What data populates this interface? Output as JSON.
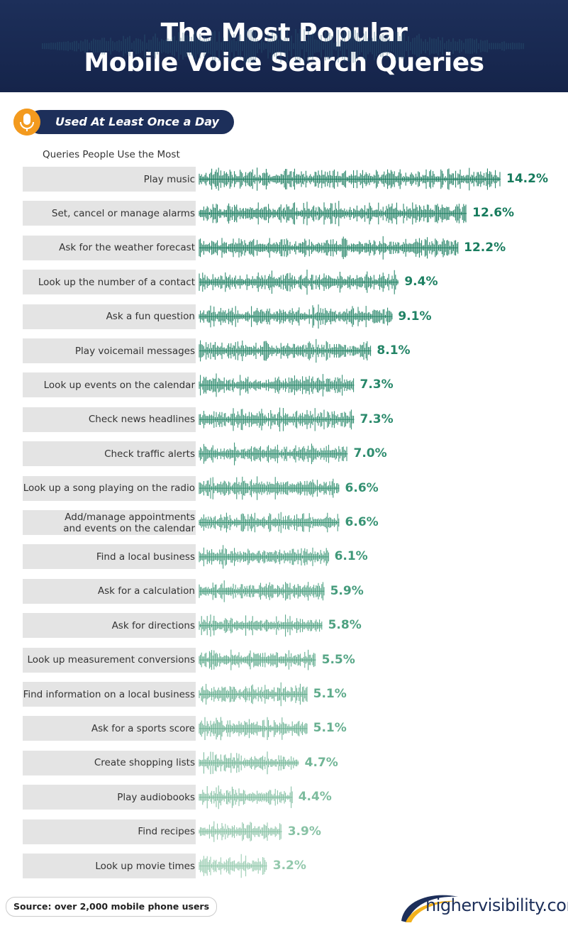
{
  "chart_data": {
    "type": "bar",
    "title": "The Most Popular\nMobile Voice Search Queries",
    "subtitle": "Used At Least Once a Day",
    "category_header": "Queries People Use the Most",
    "categories": [
      "Play music",
      "Set, cancel or manage alarms",
      "Ask for the weather forecast",
      "Look up the number of a contact",
      "Ask a fun question",
      "Play voicemail messages",
      "Look up events on the calendar",
      "Check news headlines",
      "Check traffic alerts",
      "Look up a song playing on the radio",
      "Add/manage appointments\nand events on the calendar",
      "Find a local business",
      "Ask for a calculation",
      "Ask for directions",
      "Look up measurement conversions",
      "Find information on a local business",
      "Ask for a sports score",
      "Create shopping lists",
      "Play audiobooks",
      "Find recipes",
      "Look up movie times"
    ],
    "values": [
      14.2,
      12.6,
      12.2,
      9.4,
      9.1,
      8.1,
      7.3,
      7.3,
      7.0,
      6.6,
      6.6,
      6.1,
      5.9,
      5.8,
      5.5,
      5.1,
      5.1,
      4.7,
      4.4,
      3.9,
      3.2
    ],
    "value_labels": [
      "14.2%",
      "12.6%",
      "12.2%",
      "9.4%",
      "9.1%",
      "8.1%",
      "7.3%",
      "7.3%",
      "7.0%",
      "6.6%",
      "6.6%",
      "6.1%",
      "5.9%",
      "5.8%",
      "5.5%",
      "5.1%",
      "5.1%",
      "4.7%",
      "4.4%",
      "3.9%",
      "3.2%"
    ],
    "colors": [
      "#167a5c",
      "#177b5d",
      "#1a7d5f",
      "#1d8062",
      "#208264",
      "#238466",
      "#278769",
      "#2b8a6c",
      "#2f8d6f",
      "#349172",
      "#399475",
      "#3f9879",
      "#469c7d",
      "#4ea181",
      "#56a686",
      "#5fab8b",
      "#68b091",
      "#72b697",
      "#7dbc9e",
      "#88c2a5",
      "#94c9ad"
    ],
    "source": "Source: over 2,000 mobile phone users",
    "brand": "highervisibility.com"
  }
}
